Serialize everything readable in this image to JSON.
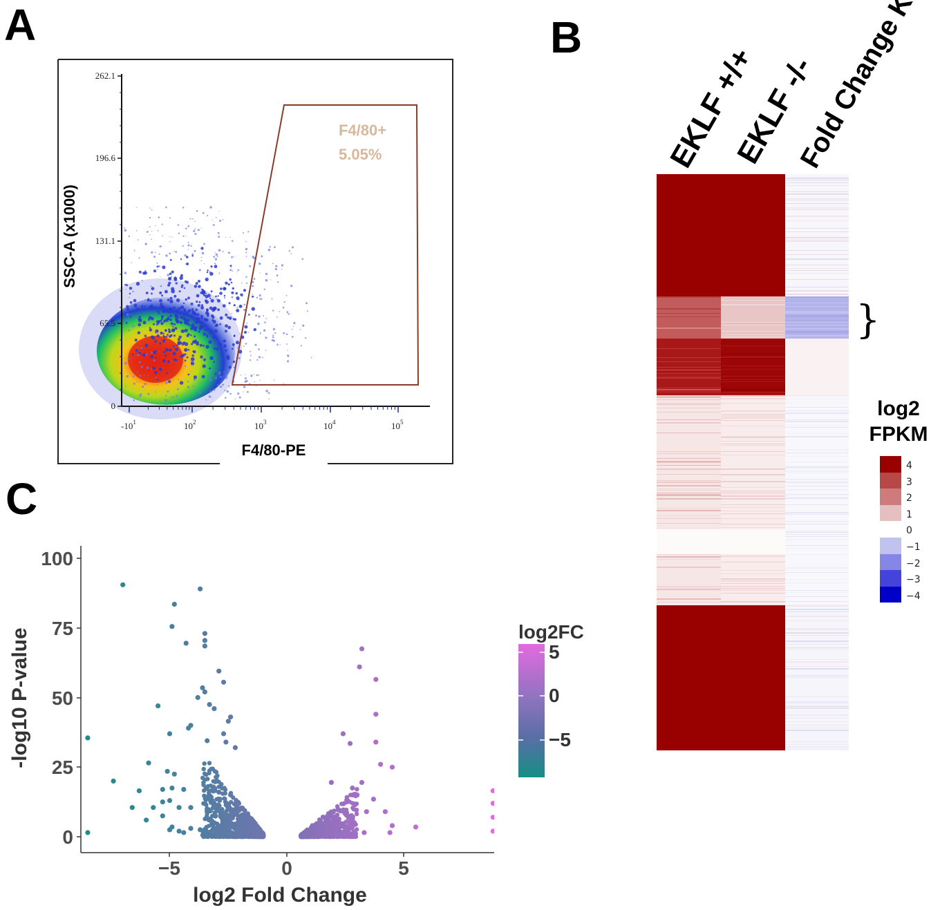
{
  "panels": {
    "a": "A",
    "b": "B",
    "c": "C"
  },
  "panel_a": {
    "chart_data": {
      "type": "scatter",
      "title": "",
      "xlabel": "F4/80-PE",
      "ylabel": "SSC-A (x1000)",
      "y_ticks": [
        "0",
        "65.5",
        "131.1",
        "196.6",
        "262.1"
      ],
      "x_ticks": [
        {
          "base": "-10",
          "exp": "1"
        },
        {
          "base": "10",
          "exp": "2"
        },
        {
          "base": "10",
          "exp": "3"
        },
        {
          "base": "10",
          "exp": "4"
        },
        {
          "base": "10",
          "exp": "5"
        }
      ],
      "gate": {
        "name": "F4/80+",
        "percent": "5.05%"
      },
      "colors": {
        "gate": "#8b3a2a",
        "gate_text": "#d8b89c",
        "density_low": "#1f2fd0",
        "density_high": "#e02010"
      }
    }
  },
  "panel_b": {
    "chart_data": {
      "type": "heatmap",
      "columns": [
        "EKLF +/+",
        "EKLF -/-",
        "Fold Change KO/WT"
      ],
      "legend_title": [
        "log2",
        "FPKM"
      ],
      "legend_values": [
        "4",
        "3",
        "2",
        "1",
        "0",
        "−1",
        "−2",
        "−3",
        "−4"
      ],
      "legend_colors": [
        "#990000",
        "#b84848",
        "#cd7b7b",
        "#e6c0c0",
        "#ffffff",
        "#c2c2ee",
        "#8686e6",
        "#4444dd",
        "#0000c8"
      ],
      "blocks": [
        {
          "wt": 4,
          "ko": 4,
          "fc": 0
        },
        {
          "wt": 2.5,
          "ko": 1,
          "fc": -1.5
        },
        {
          "wt": 3.5,
          "ko": 4,
          "fc": 0.1
        },
        {
          "wt": 0.4,
          "ko": 0.3,
          "fc": 0
        },
        {
          "wt": 4,
          "ko": 4,
          "fc": 0
        }
      ],
      "highlight_symbol": "}"
    }
  },
  "panel_c": {
    "chart_data": {
      "type": "scatter",
      "xlabel": "log2 Fold Change",
      "ylabel": "-log10 P-value",
      "x_ticks": [
        "−5",
        "0",
        "5"
      ],
      "y_ticks": [
        "0",
        "25",
        "50",
        "75",
        "100"
      ],
      "xlim": [
        -8.5,
        8.8
      ],
      "ylim": [
        0,
        100
      ],
      "legend_title": "log2FC",
      "legend_ticks": [
        "5",
        "0",
        "−5"
      ],
      "colors": {
        "low": "#1f8c8a",
        "mid": "#7b72b4",
        "high": "#e36adf"
      },
      "points": [
        [
          -7.0,
          90.5
        ],
        [
          -3.7,
          89
        ],
        [
          -4.8,
          83.5
        ],
        [
          -4.9,
          75.5
        ],
        [
          -3.5,
          73
        ],
        [
          -3.5,
          70.5
        ],
        [
          -3.5,
          68.5
        ],
        [
          -4.3,
          69.5
        ],
        [
          -2.9,
          59.5
        ],
        [
          -2.7,
          55.5
        ],
        [
          -3.6,
          53.5
        ],
        [
          -3.5,
          52
        ],
        [
          -3.8,
          50
        ],
        [
          -3.3,
          47.5
        ],
        [
          -5.5,
          47
        ],
        [
          -3.1,
          46
        ],
        [
          -2.4,
          43
        ],
        [
          -2.5,
          41.5
        ],
        [
          -4.1,
          40
        ],
        [
          -4.2,
          39
        ],
        [
          -5.0,
          37
        ],
        [
          -2.7,
          37
        ],
        [
          -3.4,
          34.5
        ],
        [
          -2.6,
          34
        ],
        [
          -2.2,
          32
        ],
        [
          -5.9,
          26.5
        ],
        [
          -5.1,
          23.5
        ],
        [
          -4.8,
          22.5
        ],
        [
          -7.4,
          20
        ],
        [
          -5.3,
          17
        ],
        [
          -4.9,
          17.5
        ],
        [
          -4.4,
          17
        ],
        [
          -6.3,
          16.5
        ],
        [
          -2.9,
          16
        ],
        [
          -2.4,
          15
        ],
        [
          -5.0,
          13
        ],
        [
          -6.6,
          10.5
        ],
        [
          -5.7,
          10.5
        ],
        [
          -5.3,
          12.5
        ],
        [
          -4.6,
          10.5
        ],
        [
          -4.1,
          10.5
        ],
        [
          -3.4,
          10
        ],
        [
          -6.0,
          6
        ],
        [
          -5.3,
          7.5
        ],
        [
          -4.9,
          3.5
        ],
        [
          -5.0,
          2.5
        ],
        [
          -4.6,
          2
        ],
        [
          -4.4,
          1.5
        ],
        [
          -4.1,
          3
        ],
        [
          -3.7,
          2.5
        ],
        [
          -3.5,
          2
        ],
        [
          -8.5,
          35.5
        ],
        [
          -8.5,
          1.5
        ],
        [
          -3.1,
          5
        ],
        [
          -2.8,
          7
        ],
        [
          -2.5,
          3
        ],
        [
          3.2,
          67.5
        ],
        [
          3.1,
          61
        ],
        [
          3.8,
          56.5
        ],
        [
          3.8,
          44
        ],
        [
          3.8,
          34
        ],
        [
          2.4,
          37
        ],
        [
          2.7,
          33.5
        ],
        [
          4.0,
          26
        ],
        [
          4.5,
          25
        ],
        [
          3.2,
          19.5
        ],
        [
          1.9,
          19.5
        ],
        [
          2.8,
          17.5
        ],
        [
          3.0,
          15
        ],
        [
          3.7,
          13.5
        ],
        [
          4.2,
          9
        ],
        [
          3.4,
          9
        ],
        [
          4.5,
          4
        ],
        [
          5.5,
          3.5
        ],
        [
          4.4,
          1.5
        ],
        [
          3.3,
          1.5
        ],
        [
          8.8,
          16.5
        ],
        [
          8.8,
          12
        ],
        [
          8.8,
          7
        ],
        [
          8.8,
          2
        ]
      ]
    }
  }
}
